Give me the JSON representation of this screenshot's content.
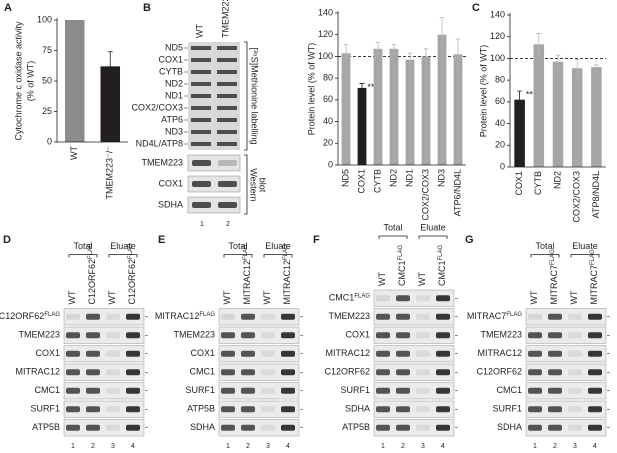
{
  "chart_data": [
    {
      "type": "bar",
      "panel": "A",
      "categories": [
        "WT",
        "TMEM223⁻/⁻"
      ],
      "values": [
        100,
        62
      ],
      "errors": [
        0,
        12
      ],
      "colors": [
        "#8c8c8c",
        "#231f20"
      ],
      "ylim": [
        0,
        100
      ],
      "yticks": [
        0,
        25,
        50,
        75,
        100
      ],
      "ylabel": [
        "Cytochrome c oxidase activity",
        "(% of WT)"
      ]
    },
    {
      "type": "bar",
      "categories": [
        "ND5",
        "COX1",
        "CYTB",
        "ND2",
        "ND1",
        "COX2/COX3",
        "ND3",
        "ATP6/ND4L"
      ],
      "values": [
        103,
        71,
        107,
        107,
        97,
        100,
        120,
        102
      ],
      "errors": [
        8,
        4,
        6,
        4,
        6,
        7,
        16,
        14
      ],
      "colors": [
        "#a6a6a6",
        "#231f20",
        "#a6a6a6",
        "#a6a6a6",
        "#a6a6a6",
        "#a6a6a6",
        "#a6a6a6",
        "#a6a6a6"
      ],
      "ylim": [
        0,
        140
      ],
      "yticks": [
        0,
        20,
        40,
        60,
        80,
        100,
        120,
        140
      ],
      "reference_line": 100,
      "ylabel": [
        "Protein level (% of WT)"
      ],
      "annotations": [
        {
          "category": "COX1",
          "text": "**"
        }
      ]
    },
    {
      "type": "bar",
      "panel": "C",
      "categories": [
        "COX1",
        "CYTB",
        "ND2",
        "COX2/COX3",
        "ATP8/ND4L"
      ],
      "values": [
        62,
        113,
        97,
        91,
        92
      ],
      "errors": [
        8,
        10,
        6,
        8,
        2
      ],
      "colors": [
        "#231f20",
        "#a6a6a6",
        "#a6a6a6",
        "#a6a6a6",
        "#a6a6a6"
      ],
      "ylim": [
        0,
        140
      ],
      "yticks": [
        0,
        20,
        40,
        60,
        80,
        100,
        120,
        140
      ],
      "reference_line": 100,
      "ylabel": [
        "Protein level (% of WT)"
      ],
      "annotations": [
        {
          "category": "COX1",
          "text": "**"
        }
      ]
    }
  ],
  "gel": {
    "panel": "B",
    "lanes": [
      "WT",
      "TMEM223⁻/⁻"
    ],
    "lane_numbers": [
      "1",
      "2"
    ],
    "labelling_bands": [
      "ND5",
      "COX1",
      "CYTB",
      "ND2",
      "ND1",
      "COX2/COX3",
      "ATP6",
      "ND3",
      "ND4L/ATP8"
    ],
    "labelling_label": "[³⁵S]Methionine labelling",
    "western_bands": [
      "TMEM223",
      "COX1",
      "SDHA"
    ],
    "western_label": [
      "Western",
      "blot"
    ]
  },
  "blot_panels": [
    {
      "panel": "D",
      "groups": [
        "Total",
        "Eluate"
      ],
      "lanes": [
        {
          "name": "WT"
        },
        {
          "name": "C12ORF62",
          "sup": "FLAG"
        },
        {
          "name": "WT"
        },
        {
          "name": "C12ORF62",
          "sup": "FLAG"
        }
      ],
      "lane_numbers": [
        "1",
        "2",
        "3",
        "4"
      ],
      "rows": [
        {
          "name": "C12ORF62",
          "sup": "FLAG"
        },
        {
          "name": "TMEM223"
        },
        {
          "name": "COX1"
        },
        {
          "name": "MITRAC12"
        },
        {
          "name": "CMC1"
        },
        {
          "name": "SURF1"
        },
        {
          "name": "ATP5B"
        }
      ]
    },
    {
      "panel": "E",
      "groups": [
        "Total",
        "Eluate"
      ],
      "lanes": [
        {
          "name": "WT"
        },
        {
          "name": "MITRAC12",
          "sup": "FLAG"
        },
        {
          "name": "WT"
        },
        {
          "name": "MITRAC12",
          "sup": "FLAG"
        }
      ],
      "lane_numbers": [
        "1",
        "2",
        "3",
        "4"
      ],
      "rows": [
        {
          "name": "MITRAC12",
          "sup": "FLAG"
        },
        {
          "name": "TMEM223"
        },
        {
          "name": "COX1"
        },
        {
          "name": "CMC1"
        },
        {
          "name": "SURF1"
        },
        {
          "name": "ATP5B"
        },
        {
          "name": "SDHA"
        }
      ]
    },
    {
      "panel": "F",
      "groups": [
        "Total",
        "Eluate"
      ],
      "lanes": [
        {
          "name": "WT"
        },
        {
          "name": "CMC1",
          "sup": "FLAG"
        },
        {
          "name": "WT"
        },
        {
          "name": "CMC1",
          "sup": "FLAG"
        }
      ],
      "lane_numbers": [
        "1",
        "2",
        "3",
        "4"
      ],
      "rows": [
        {
          "name": "CMC1",
          "sup": "FLAG"
        },
        {
          "name": "TMEM223"
        },
        {
          "name": "COX1"
        },
        {
          "name": "MITRAC12"
        },
        {
          "name": "C12ORF62"
        },
        {
          "name": "SURF1"
        },
        {
          "name": "SDHA"
        },
        {
          "name": "ATP5B"
        }
      ]
    },
    {
      "panel": "G",
      "groups": [
        "Total",
        "Eluate"
      ],
      "lanes": [
        {
          "name": "WT"
        },
        {
          "name": "MITRAC7",
          "sup": "FLAG"
        },
        {
          "name": "WT"
        },
        {
          "name": "MITRAC7",
          "sup": "FLAG"
        }
      ],
      "lane_numbers": [
        "1",
        "2",
        "3",
        "4"
      ],
      "rows": [
        {
          "name": "MITRAC7",
          "sup": "FLAG"
        },
        {
          "name": "TMEM223"
        },
        {
          "name": "MITRAC12"
        },
        {
          "name": "C12ORF62"
        },
        {
          "name": "CMC1"
        },
        {
          "name": "SURF1"
        },
        {
          "name": "SDHA"
        }
      ]
    }
  ]
}
